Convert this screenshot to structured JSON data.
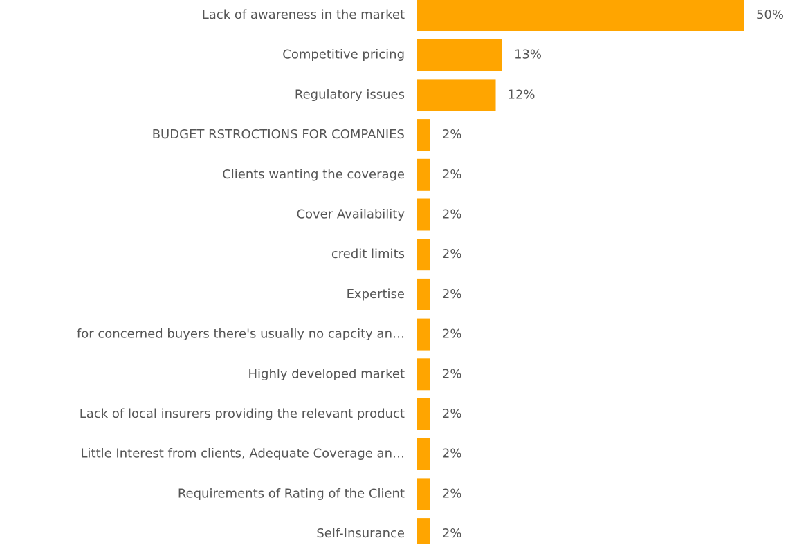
{
  "chart_data": {
    "type": "bar",
    "orientation": "horizontal",
    "color": "#ffa500",
    "categories": [
      "Lack of awareness in the market",
      "Competitive pricing",
      "Regulatory issues",
      "BUDGET RSTROCTIONS FOR COMPANIES",
      "Clients wanting the coverage",
      "Cover Availability",
      "credit limits",
      "Expertise",
      "for concerned buyers there's usually no capcity an…",
      "Highly developed market",
      "Lack of local insurers providing the relevant product",
      "Little Interest from clients, Adequate Coverage an…",
      "Requirements of Rating of the Client",
      "Self-Insurance"
    ],
    "values": [
      50,
      13,
      12,
      2,
      2,
      2,
      2,
      2,
      2,
      2,
      2,
      2,
      2,
      2
    ],
    "value_labels": [
      "50%",
      "13%",
      "12%",
      "2%",
      "2%",
      "2%",
      "2%",
      "2%",
      "2%",
      "2%",
      "2%",
      "2%",
      "2%",
      "2%"
    ]
  }
}
